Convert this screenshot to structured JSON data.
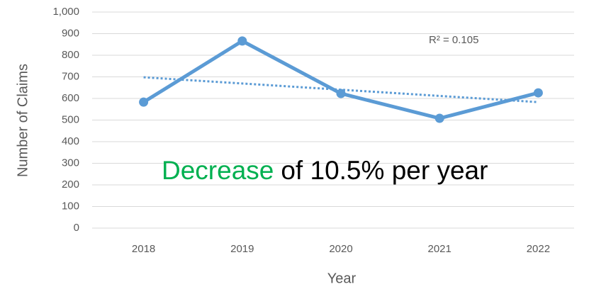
{
  "chart_data": {
    "type": "line",
    "x_label": "Year",
    "y_label": "Number of Claims",
    "categories": [
      "2018",
      "2019",
      "2020",
      "2021",
      "2022"
    ],
    "series": [
      {
        "color": "#5b9bd5",
        "values": [
          583,
          866,
          623,
          508,
          626
        ]
      }
    ],
    "trendline": {
      "color": "#5b9bd5",
      "values": [
        698,
        583
      ]
    },
    "annotations": [
      "R² = 0.105",
      "Decrease",
      "of 10.5% per year"
    ],
    "annotation_color": "#00b050",
    "ylim": [
      0,
      1000
    ],
    "yticks": [
      0,
      100,
      200,
      300,
      400,
      500,
      600,
      700,
      800,
      900,
      {
        "value": 1000,
        "label": "1,000"
      }
    ],
    "grid": true
  }
}
